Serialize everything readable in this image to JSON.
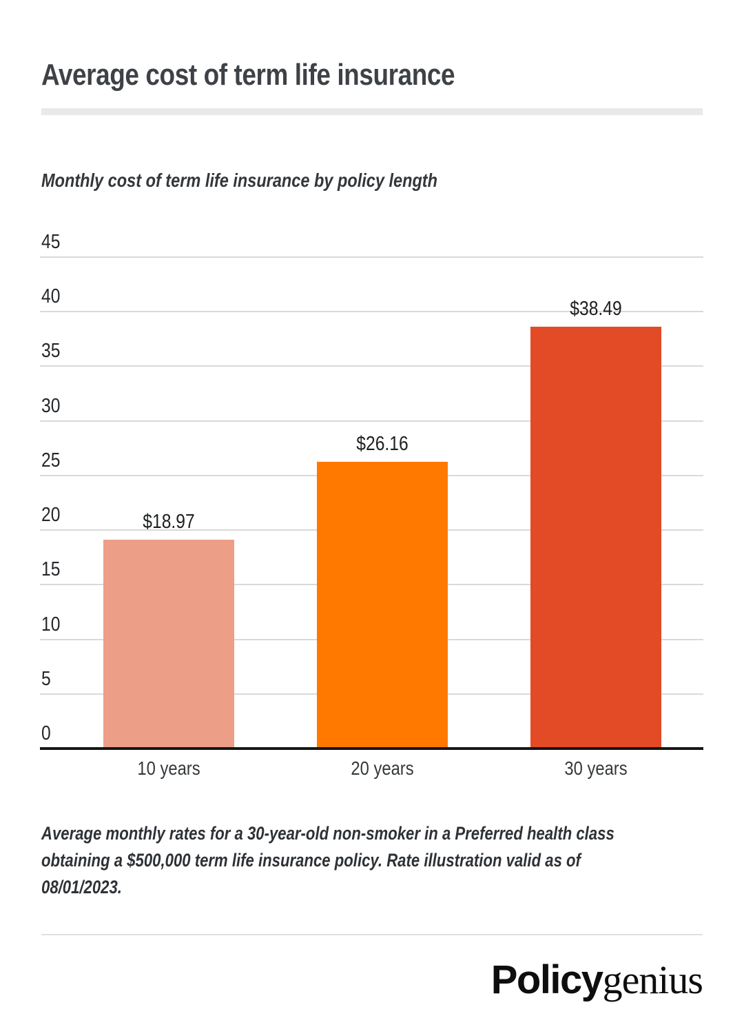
{
  "header": {
    "title": "Average cost of term life insurance"
  },
  "chart_data": {
    "type": "bar",
    "title": "Monthly cost of term life insurance by policy length",
    "categories": [
      "10 years",
      "20 years",
      "30 years"
    ],
    "values": [
      18.97,
      26.16,
      38.49
    ],
    "value_labels": [
      "$18.97",
      "$26.16",
      "$38.49"
    ],
    "bar_colors": [
      "#EC9E86",
      "#FF7800",
      "#E24B25"
    ],
    "xlabel": "",
    "ylabel": "",
    "ylim": [
      0,
      45
    ],
    "yticks": [
      0,
      5,
      10,
      15,
      20,
      25,
      30,
      35,
      40,
      45
    ],
    "grid": "horizontal",
    "legend": "none",
    "axis_color": "#161616",
    "gridline_color": "#D9D9D9"
  },
  "note": {
    "lines": [
      "Average monthly rates for a 30-year-old non-smoker in a Preferred health class",
      "obtaining a $500,000 term life insurance policy. Rate illustration valid as of",
      "08/01/2023."
    ]
  },
  "footer": {
    "logo": {
      "bold_part": "Policy",
      "serif_part": "genius"
    }
  }
}
